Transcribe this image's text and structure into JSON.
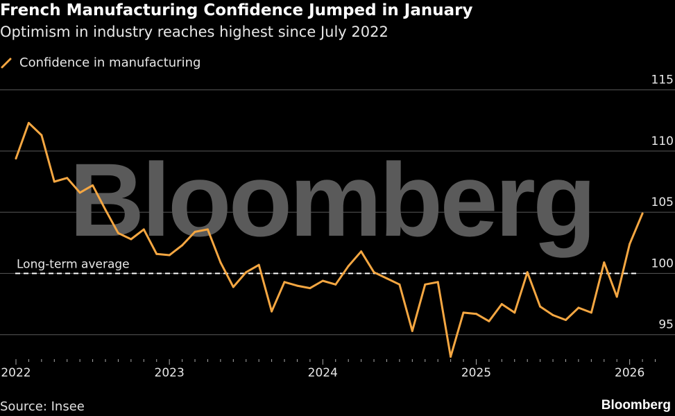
{
  "title": "French Manufacturing Confidence Jumped in January",
  "subtitle": "Optimism in industry reaches highest since July 2022",
  "legend_label": "Confidence in manufacturing",
  "source": "Source: Insee",
  "brand": "Bloomberg",
  "watermark": "Bloomberg",
  "colors": {
    "line": "#f5a742",
    "background": "#000000",
    "grid": "#5a5a5a",
    "average": "#ffffff"
  },
  "chart_data": {
    "type": "line",
    "x_start": "2022-01",
    "x_ticks": [
      "2022",
      "2023",
      "2024",
      "2025",
      "2026"
    ],
    "y_ticks": [
      95,
      100,
      105,
      110,
      115
    ],
    "ylim": [
      93,
      116
    ],
    "grid": true,
    "legend_position": "top-left",
    "reference_line": {
      "label": "Long-term average",
      "value": 100
    },
    "series": [
      {
        "name": "Confidence in manufacturing",
        "values": [
          109.4,
          112.3,
          111.3,
          107.5,
          107.8,
          106.6,
          107.2,
          105.2,
          103.3,
          102.8,
          103.6,
          101.6,
          101.5,
          102.3,
          103.4,
          103.6,
          100.9,
          98.9,
          100.1,
          100.7,
          96.9,
          99.3,
          99.0,
          98.8,
          99.4,
          99.1,
          100.6,
          101.8,
          100.1,
          99.6,
          99.1,
          95.3,
          99.1,
          99.3,
          93.2,
          96.8,
          96.7,
          96.1,
          97.5,
          96.8,
          100.1,
          97.3,
          96.6,
          96.2,
          97.2,
          96.8,
          100.9,
          98.1,
          102.4,
          104.9
        ]
      }
    ]
  }
}
